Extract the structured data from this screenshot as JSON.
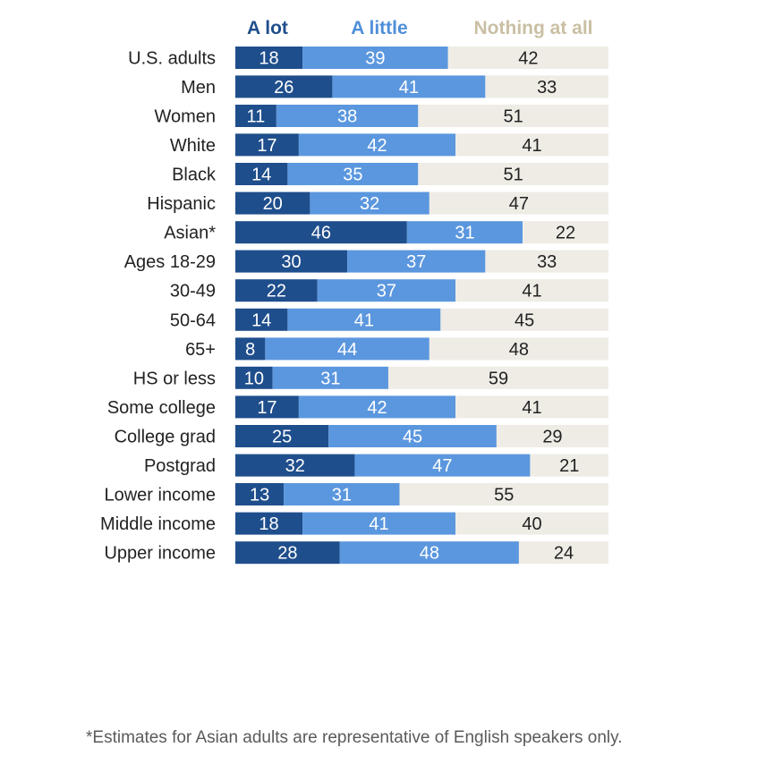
{
  "chart_data": {
    "type": "bar",
    "stacked": true,
    "orientation": "horizontal",
    "series": [
      {
        "name": "A lot",
        "color": "#1f4e8c",
        "label_color": "#1f4e8c",
        "text_color": "#ffffff"
      },
      {
        "name": "A little",
        "color": "#5b97de",
        "label_color": "#4f8fd9",
        "text_color": "#ffffff"
      },
      {
        "name": "Nothing at all",
        "color": "#efece6",
        "label_color": "#c9bfa3",
        "text_color": "#222222"
      }
    ],
    "groups": [
      {
        "rows": [
          {
            "label": "U.S. adults",
            "values": [
              18,
              39,
              42
            ]
          }
        ]
      },
      {
        "rows": [
          {
            "label": "Men",
            "values": [
              26,
              41,
              33
            ]
          },
          {
            "label": "Women",
            "values": [
              11,
              38,
              51
            ]
          }
        ]
      },
      {
        "rows": [
          {
            "label": "White",
            "values": [
              17,
              42,
              41
            ]
          },
          {
            "label": "Black",
            "values": [
              14,
              35,
              51
            ]
          },
          {
            "label": "Hispanic",
            "values": [
              20,
              32,
              47
            ]
          },
          {
            "label": "Asian*",
            "values": [
              46,
              31,
              22
            ]
          }
        ]
      },
      {
        "rows": [
          {
            "label": "Ages 18-29",
            "values": [
              30,
              37,
              33
            ]
          },
          {
            "label": "30-49",
            "values": [
              22,
              37,
              41
            ]
          },
          {
            "label": "50-64",
            "values": [
              14,
              41,
              45
            ]
          },
          {
            "label": "65+",
            "values": [
              8,
              44,
              48
            ]
          }
        ]
      },
      {
        "rows": [
          {
            "label": "HS or less",
            "values": [
              10,
              31,
              59
            ]
          },
          {
            "label": "Some college",
            "values": [
              17,
              42,
              41
            ]
          },
          {
            "label": "College grad",
            "values": [
              25,
              45,
              29
            ]
          },
          {
            "label": "Postgrad",
            "values": [
              32,
              47,
              21
            ]
          }
        ]
      },
      {
        "rows": [
          {
            "label": "Lower income",
            "values": [
              13,
              31,
              55
            ]
          },
          {
            "label": "Middle income",
            "values": [
              18,
              41,
              40
            ]
          },
          {
            "label": "Upper income",
            "values": [
              28,
              48,
              24
            ]
          }
        ]
      }
    ],
    "xlim": [
      0,
      100
    ],
    "grid": false,
    "legend": "top"
  },
  "footnote": "*Estimates for Asian adults are representative of English speakers only."
}
